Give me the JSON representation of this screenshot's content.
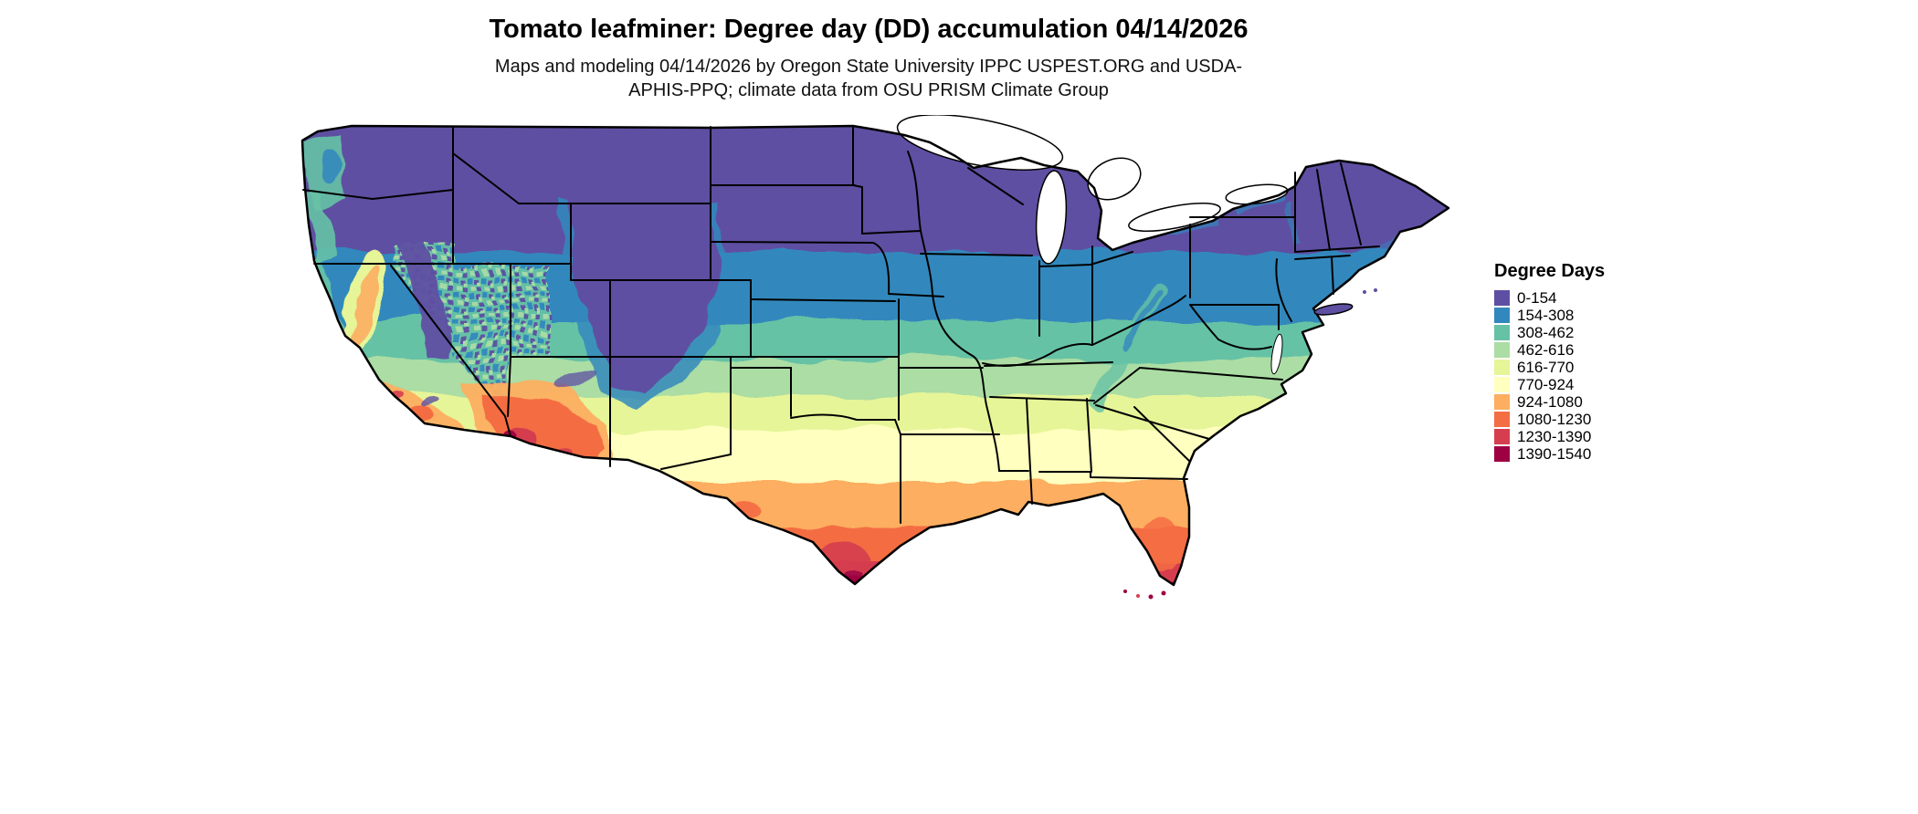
{
  "header": {
    "title": "Tomato leafminer: Degree day (DD) accumulation 04/14/2026",
    "subtitle": "Maps and modeling 04/14/2026 by Oregon State University IPPC USPEST.ORG and USDA-APHIS-PPQ; climate data from OSU PRISM Climate Group"
  },
  "legend": {
    "title": "Degree Days",
    "classes": [
      {
        "range": "0-154",
        "color": "#5e4fa2"
      },
      {
        "range": "154-308",
        "color": "#3288bd"
      },
      {
        "range": "308-462",
        "color": "#66c2a5"
      },
      {
        "range": "462-616",
        "color": "#abdda4"
      },
      {
        "range": "616-770",
        "color": "#e6f598"
      },
      {
        "range": "770-924",
        "color": "#ffffbf"
      },
      {
        "range": "924-1080",
        "color": "#fdae61"
      },
      {
        "range": "1080-1230",
        "color": "#f46d43"
      },
      {
        "range": "1230-1390",
        "color": "#d53e4f"
      },
      {
        "range": "1390-1540",
        "color": "#9e0142"
      }
    ]
  },
  "map": {
    "region": "Continental United States",
    "kind": "degree-day accumulation choropleth",
    "pest": "Tomato leafminer",
    "date": "04/14/2026"
  }
}
